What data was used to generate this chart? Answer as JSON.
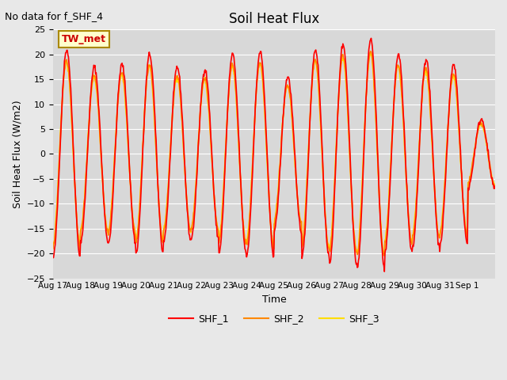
{
  "title": "Soil Heat Flux",
  "top_left_text": "No data for f_SHF_4",
  "annotation_text": "TW_met",
  "ylabel": "Soil Heat Flux (W/m2)",
  "xlabel": "Time",
  "ylim": [
    -25,
    25
  ],
  "yticks": [
    -25,
    -20,
    -15,
    -10,
    -5,
    0,
    5,
    10,
    15,
    20,
    25
  ],
  "xtick_labels": [
    "Aug 17",
    "Aug 18",
    "Aug 19",
    "Aug 20",
    "Aug 21",
    "Aug 22",
    "Aug 23",
    "Aug 24",
    "Aug 25",
    "Aug 26",
    "Aug 27",
    "Aug 28",
    "Aug 29",
    "Aug 30",
    "Aug 31",
    "Sep 1"
  ],
  "background_color": "#e8e8e8",
  "plot_bg_color": "#d8d8d8",
  "line_colors": {
    "SHF_1": "#ff0000",
    "SHF_2": "#ff8800",
    "SHF_3": "#ffdd00"
  },
  "legend_labels": [
    "SHF_1",
    "SHF_2",
    "SHF_3"
  ],
  "n_days": 16,
  "points_per_day": 48,
  "day_amps": [
    21,
    17.5,
    18,
    20,
    17.5,
    17,
    20,
    20.5,
    15.5,
    21,
    22,
    23,
    20,
    19,
    18,
    7
  ]
}
